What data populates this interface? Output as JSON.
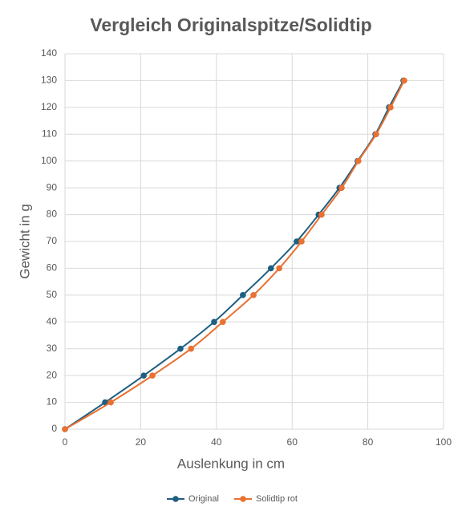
{
  "chart_data": {
    "type": "scatter",
    "title": "Vergleich Originalspitze/Solidtip",
    "x_label": "Auslenkung in cm",
    "y_label": "Gewicht in g",
    "smooth": true,
    "grid": true,
    "xlim": [
      0,
      100
    ],
    "xticks": [
      0,
      20,
      40,
      60,
      80,
      100
    ],
    "ylim": [
      0,
      140
    ],
    "yticks": [
      0,
      10,
      20,
      30,
      40,
      50,
      60,
      70,
      80,
      90,
      100,
      110,
      120,
      130,
      140
    ],
    "series": [
      {
        "name": "Original",
        "color": "#1f5f80",
        "x": [
          0,
          10.6,
          20.8,
          30.5,
          39.4,
          47.0,
          54.4,
          61.2,
          67.0,
          72.5,
          77.3,
          82.0,
          85.6,
          89.4
        ],
        "values": [
          0,
          10,
          20,
          30,
          40,
          50,
          60,
          70,
          80,
          90,
          100,
          110,
          120,
          130
        ]
      },
      {
        "name": "Solidtip rot",
        "color": "#e97132",
        "x": [
          0,
          12.1,
          23.1,
          33.3,
          41.7,
          49.8,
          56.6,
          62.5,
          67.8,
          73.1,
          77.5,
          82.2,
          86.0,
          89.6
        ],
        "values": [
          0,
          10,
          20,
          30,
          40,
          50,
          60,
          70,
          80,
          90,
          100,
          110,
          120,
          130
        ]
      }
    ]
  }
}
